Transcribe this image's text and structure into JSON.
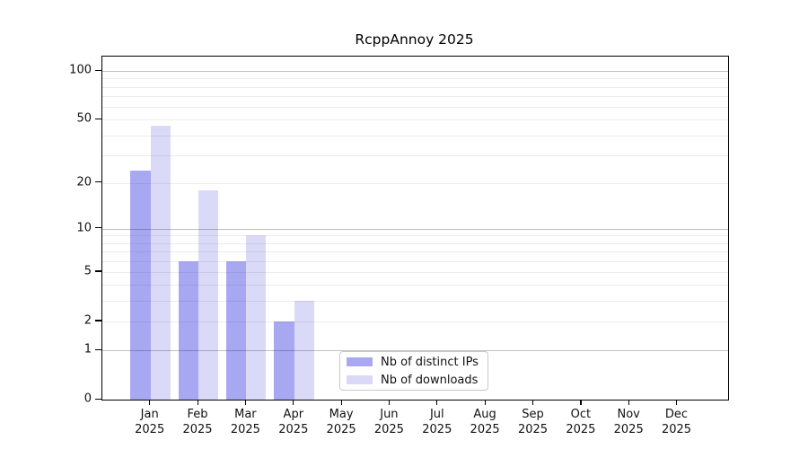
{
  "chart_data": {
    "type": "bar",
    "title": "RcppAnnoy 2025",
    "categories": [
      "Jan",
      "Feb",
      "Mar",
      "Apr",
      "May",
      "Jun",
      "Jul",
      "Aug",
      "Sep",
      "Oct",
      "Nov",
      "Dec"
    ],
    "year_label": "2025",
    "series": [
      {
        "name": "Nb of distinct IPs",
        "color": "#a8a8f2",
        "values": [
          24,
          6,
          6,
          2,
          0,
          0,
          0,
          0,
          0,
          0,
          0,
          0
        ]
      },
      {
        "name": "Nb of downloads",
        "color": "#dadaf8",
        "values": [
          46,
          18,
          9,
          3,
          0,
          0,
          0,
          0,
          0,
          0,
          0,
          0
        ]
      }
    ],
    "yscale": "log1p",
    "ylim": [
      0,
      123
    ],
    "y_ticks": [
      0,
      1,
      2,
      5,
      10,
      20,
      50,
      100
    ],
    "grid": {
      "minor_values": [
        2,
        3,
        4,
        5,
        6,
        7,
        8,
        9,
        20,
        30,
        40,
        50,
        60,
        70,
        80,
        90
      ],
      "major_values": [
        1,
        10,
        100
      ],
      "minor_color": "#ebebeb",
      "major_color": "#c2c2c2"
    },
    "legend_position": "bottom-center",
    "axis_color": "#000000",
    "background": "#ffffff"
  }
}
